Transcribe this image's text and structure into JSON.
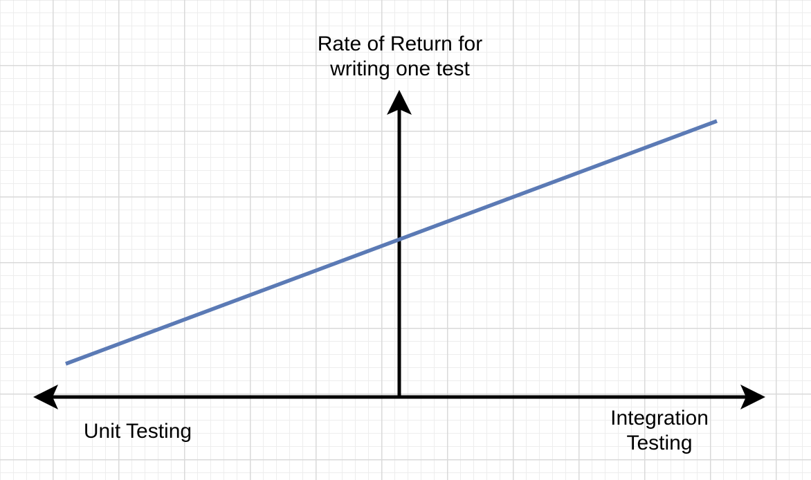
{
  "diagram": {
    "y_axis_label_line1": "Rate of Return for",
    "y_axis_label_line2": "writing one test",
    "x_axis_left_label": "Unit Testing",
    "x_axis_right_label_line1": "Integration",
    "x_axis_right_label_line2": "Testing",
    "colors": {
      "trend_line": "#5b7ab5",
      "axes": "#000000",
      "grid_minor": "#ededed",
      "grid_major": "#d9d9d9"
    }
  }
}
